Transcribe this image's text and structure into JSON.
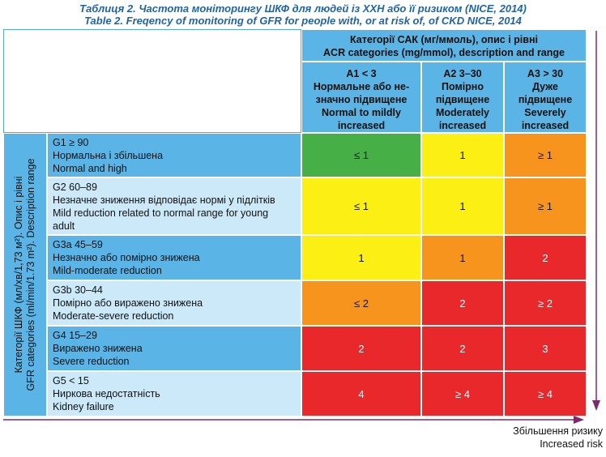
{
  "title_uk": "Таблиця 2. Частота моніторингу ШКФ для людей із ХХН або її ризиком (NICE, 2014)",
  "title_en": "Table 2. Freqency of monitoring of GFR for people with, or at risk of, of CKD NICE, 2014",
  "acr_header": {
    "line1": "Категорії САК (мг/ммоль), опис і рівні",
    "line2": "ACR categories (mg/mmol), description and range"
  },
  "columns": [
    {
      "code": "A1 < 3",
      "lines": [
        "Нормальне або не-",
        "значно підвищене",
        "Normal to mildly",
        "increased"
      ]
    },
    {
      "code": "A2 3–30",
      "lines": [
        "Помірно",
        "підвищене",
        "Moderately",
        "increased"
      ]
    },
    {
      "code": "A3 > 30",
      "lines": [
        "Дуже",
        "підвищене",
        "Severely",
        "increased"
      ]
    }
  ],
  "gfr_side": {
    "line1": "Категорії ШКФ (мл/хв/1,73 м²). Опис і рівні",
    "line2": "GFR categories (ml/min/1.73 m²). Description range"
  },
  "rows": [
    {
      "lines": [
        "G1 ≥ 90",
        "Нормальна і збільшена",
        "Normal and high"
      ],
      "values": [
        "≤ 1",
        "1",
        "≥ 1"
      ]
    },
    {
      "lines": [
        "G2 60–89",
        "Незначне зниження відповідає нормі у підлітків",
        "Mild reduction related to normal range for young",
        "adult"
      ],
      "values": [
        "≤ 1",
        "1",
        "≥ 1"
      ]
    },
    {
      "lines": [
        "G3a 45–59",
        "Незначно або помірно знижена",
        "Mild-moderate reduction"
      ],
      "values": [
        "1",
        "1",
        "2"
      ]
    },
    {
      "lines": [
        "G3b 30–44",
        "Помірно або виражено знижена",
        "Moderate-severe reduction"
      ],
      "values": [
        "≤ 2",
        "2",
        "≥ 2"
      ]
    },
    {
      "lines": [
        "G4 15–29",
        "Виражено знижена",
        "Severe reduction"
      ],
      "values": [
        "2",
        "2",
        "3"
      ]
    },
    {
      "lines": [
        "G5 < 15",
        "Ниркова недостатність",
        "Kidney failure"
      ],
      "values": [
        "4",
        "≥ 4",
        "≥ 4"
      ]
    }
  ],
  "risk_colors": [
    "green",
    "yellow",
    "orange",
    "yellow",
    "yellow",
    "orange",
    "yellow",
    "orange",
    "red",
    "orange",
    "red",
    "red",
    "red",
    "red",
    "red",
    "red",
    "red",
    "red"
  ],
  "colors": {
    "header": "#5ab4e5",
    "light_row": "#cbe9f8",
    "green": "#46b046",
    "yellow": "#fbef13",
    "orange": "#f7941d",
    "red": "#e8282b",
    "title": "#1f63a8"
  },
  "risk_label": {
    "uk": "Збільшення ризику",
    "en": "Increased risk"
  }
}
